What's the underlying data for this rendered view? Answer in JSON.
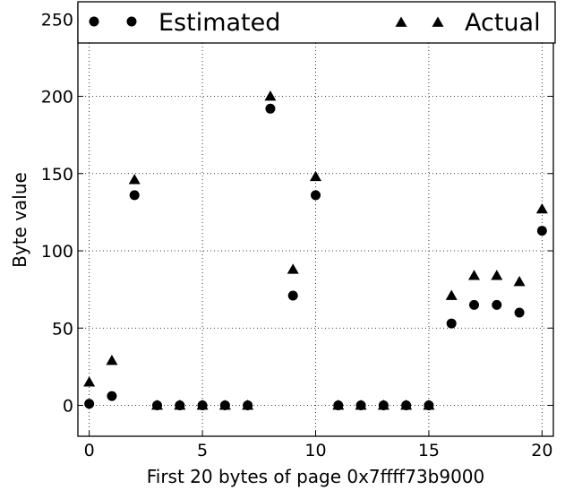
{
  "chart_data": {
    "type": "scatter",
    "xlabel": "First 20 bytes of page 0x7ffff73b9000",
    "ylabel": "Byte value",
    "xlim": [
      -0.5,
      20.5
    ],
    "ylim": [
      -20,
      260
    ],
    "xticks": [
      0,
      5,
      10,
      15,
      20
    ],
    "yticks": [
      0,
      50,
      100,
      150,
      200,
      250
    ],
    "grid": true,
    "grid_style": "dotted",
    "legend_position": "top",
    "series": [
      {
        "name": "Estimated",
        "marker": "circle",
        "color": "#000000",
        "x": [
          0,
          1,
          2,
          3,
          4,
          5,
          6,
          7,
          8,
          9,
          10,
          11,
          12,
          13,
          14,
          15,
          16,
          17,
          18,
          19,
          20
        ],
        "values": [
          1,
          6,
          136,
          0,
          0,
          0,
          0,
          0,
          192,
          71,
          136,
          0,
          0,
          0,
          0,
          0,
          53,
          65,
          65,
          60,
          113
        ]
      },
      {
        "name": "Actual",
        "marker": "triangle",
        "color": "#000000",
        "x": [
          0,
          1,
          2,
          3,
          4,
          5,
          6,
          7,
          8,
          9,
          10,
          11,
          12,
          13,
          14,
          15,
          16,
          17,
          18,
          19,
          20
        ],
        "values": [
          15,
          29,
          146,
          0,
          0,
          0,
          0,
          0,
          200,
          88,
          148,
          0,
          0,
          0,
          0,
          0,
          71,
          84,
          84,
          80,
          127
        ]
      }
    ]
  }
}
